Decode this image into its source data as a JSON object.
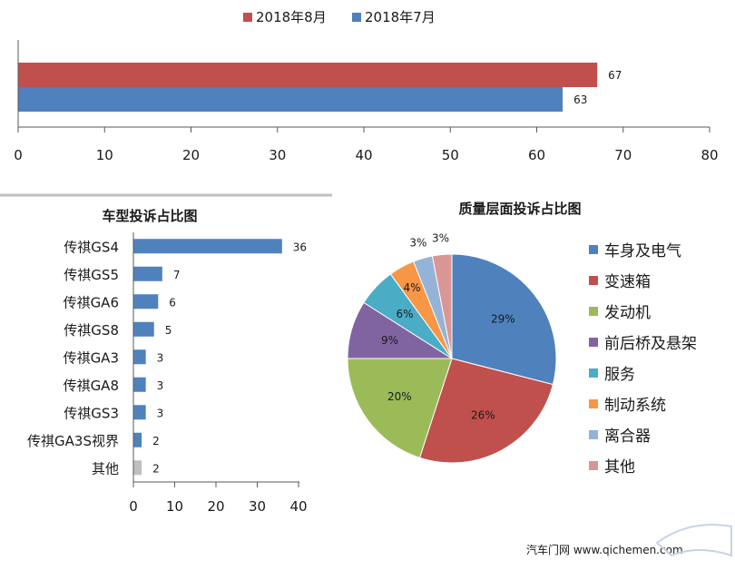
{
  "chart_data": [
    {
      "type": "bar",
      "orientation": "horizontal",
      "legend_position": "top",
      "categories": [
        ""
      ],
      "series": [
        {
          "name": "2018年8月",
          "values": [
            67
          ],
          "color": "#c0504d"
        },
        {
          "name": "2018年7月",
          "values": [
            63
          ],
          "color": "#4f81bd"
        }
      ],
      "xlim": [
        0,
        80
      ],
      "xticks": [
        "0",
        "10",
        "20",
        "30",
        "40",
        "50",
        "60",
        "70",
        "80"
      ],
      "grid": false
    },
    {
      "type": "bar",
      "orientation": "horizontal",
      "title": "车型投诉占比图",
      "categories": [
        "传祺GS4",
        "传祺GS5",
        "传祺GA6",
        "传祺GS8",
        "传祺GA3",
        "传祺GA8",
        "传祺GS3",
        "传祺GA3S视界",
        "其他"
      ],
      "values": [
        36,
        7,
        6,
        5,
        3,
        3,
        3,
        2,
        2
      ],
      "colors": [
        "#4f81bd",
        "#4f81bd",
        "#4f81bd",
        "#4f81bd",
        "#4f81bd",
        "#4f81bd",
        "#4f81bd",
        "#4f81bd",
        "#bfbfbf"
      ],
      "xlim": [
        0,
        40
      ],
      "xticks": [
        "0",
        "10",
        "20",
        "30",
        "40"
      ],
      "grid": false
    },
    {
      "type": "pie",
      "title": "质量层面投诉占比图",
      "legend_position": "right",
      "labels": [
        "车身及电气",
        "变速箱",
        "发动机",
        "前后桥及悬架",
        "服务",
        "制动系统",
        "离合器",
        "其他"
      ],
      "values": [
        29,
        26,
        20,
        9,
        6,
        4,
        3,
        3
      ],
      "value_labels": [
        "29%",
        "26%",
        "20%",
        "9%",
        "6%",
        "4%",
        "3%",
        "3%"
      ],
      "colors": [
        "#4f81bd",
        "#c0504d",
        "#9bbb59",
        "#8064a2",
        "#4bacc6",
        "#f79646",
        "#95b3d7",
        "#d99694"
      ]
    }
  ],
  "watermark": {
    "text": "汽车门网  www.qichemen.com"
  }
}
